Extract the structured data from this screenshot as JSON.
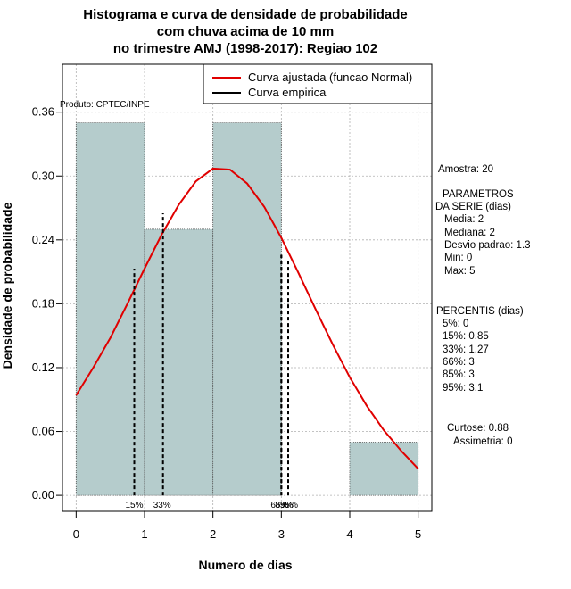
{
  "chart_data": {
    "type": "bar",
    "title_lines": [
      "Histograma e curva de densidade de probabilidade",
      "com chuva acima de 10 mm",
      "no trimestre AMJ (1998-2017): Regiao 102"
    ],
    "xlabel": "Numero de dias",
    "ylabel": "Densidade de probabilidade",
    "xlim": [
      -0.2,
      5.2
    ],
    "ylim": [
      -0.015,
      0.405
    ],
    "x_ticks": [
      0,
      1,
      2,
      3,
      4,
      5
    ],
    "y_ticks": [
      0.0,
      0.06,
      0.12,
      0.18,
      0.24,
      0.3,
      0.36
    ],
    "y_tick_labels": [
      "0.00",
      "0.06",
      "0.12",
      "0.18",
      "0.24",
      "0.30",
      "0.36"
    ],
    "grid": true,
    "bins": [
      {
        "start": 0,
        "end": 1,
        "density": 0.35
      },
      {
        "start": 1,
        "end": 2,
        "density": 0.25
      },
      {
        "start": 2,
        "end": 3,
        "density": 0.35
      },
      {
        "start": 3,
        "end": 4,
        "density": 0.0
      },
      {
        "start": 4,
        "end": 5,
        "density": 0.05
      }
    ],
    "bar_color": "#b5cccc",
    "series": [
      {
        "name": "Curva ajustada (funcao Normal)",
        "color": "#e00000",
        "x": [
          0,
          0.25,
          0.5,
          0.75,
          1.0,
          1.25,
          1.5,
          1.75,
          2.0,
          2.25,
          2.5,
          2.75,
          3.0,
          3.25,
          3.5,
          3.75,
          4.0,
          4.25,
          4.5,
          4.75,
          5.0
        ],
        "y": [
          0.094,
          0.12,
          0.148,
          0.18,
          0.213,
          0.245,
          0.273,
          0.295,
          0.307,
          0.306,
          0.293,
          0.271,
          0.242,
          0.209,
          0.175,
          0.142,
          0.111,
          0.084,
          0.061,
          0.042,
          0.025
        ]
      },
      {
        "name": "Curva empirica",
        "color": "#000000"
      }
    ],
    "percentile_lines": [
      {
        "label": "15%",
        "x": 0.85,
        "y": 0.213
      },
      {
        "label": "33%",
        "x": 1.27,
        "y": 0.265
      },
      {
        "label": "66%",
        "x": 3.0,
        "y": 0.226
      },
      {
        "label": "85%",
        "x": 3.0,
        "y": 0.226
      },
      {
        "label": "95%",
        "x": 3.1,
        "y": 0.22
      }
    ],
    "legend_placement": "top-right",
    "annotation": "Produto: CPTEC/INPE"
  },
  "stats": {
    "lines": [
      "Amostra: 20",
      "PARAMETROS",
      "DA SERIE (dias)",
      "Media: 2",
      "Mediana: 2",
      "Desvio padrao: 1.3",
      "Min: 0",
      "Max: 5",
      "PERCENTIS (dias)",
      "5%: 0",
      "15%: 0.85",
      "33%: 1.27",
      "66%: 3",
      "85%: 3",
      "95%: 3.1",
      "Curtose: 0.88",
      "Assimetria: 0"
    ]
  }
}
